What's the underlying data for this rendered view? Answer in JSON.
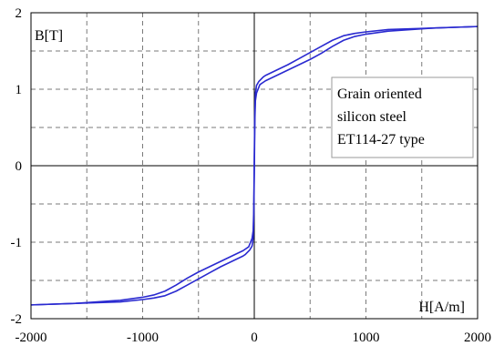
{
  "chart_data": {
    "type": "line",
    "title": "",
    "xlabel": "H[A/m]",
    "ylabel": "B[T]",
    "xlim": [
      -2000,
      2000
    ],
    "ylim": [
      -2,
      2
    ],
    "x_ticks": [
      -2000,
      -1000,
      0,
      1000,
      2000
    ],
    "y_ticks": [
      -2,
      -1,
      0,
      1,
      2
    ],
    "x_tick_labels": [
      "-2000",
      "-1000",
      "0",
      "1000",
      "2000"
    ],
    "y_tick_labels": [
      "-2",
      "-1",
      "0",
      "1",
      "2"
    ],
    "grid": true,
    "grid_step_x": 500,
    "grid_step_y": 0.5,
    "annotation": {
      "lines": [
        "Grain oriented",
        "silicon steel",
        "ET114-27 type"
      ],
      "placement": "upper-right"
    },
    "series": [
      {
        "color": "#2a2ad0",
        "x": [
          -2000,
          -1600,
          -1200,
          -1000,
          -900,
          -800,
          -700,
          -600,
          -500,
          -400,
          -300,
          -200,
          -100,
          -50,
          -20,
          -10,
          -5,
          0,
          5,
          10,
          20,
          40,
          60,
          80,
          100,
          200,
          300,
          400,
          500,
          600,
          700,
          800,
          900,
          1000,
          1200,
          1600,
          2000
        ],
        "y": [
          -1.82,
          -1.8,
          -1.76,
          -1.72,
          -1.69,
          -1.64,
          -1.56,
          -1.47,
          -1.39,
          -1.32,
          -1.25,
          -1.18,
          -1.11,
          -1.06,
          -0.95,
          -0.85,
          -0.6,
          0.1,
          0.7,
          0.95,
          1.05,
          1.1,
          1.13,
          1.16,
          1.18,
          1.25,
          1.32,
          1.4,
          1.48,
          1.56,
          1.64,
          1.7,
          1.73,
          1.75,
          1.78,
          1.8,
          1.82
        ]
      },
      {
        "color": "#2a2ad0",
        "x": [
          -2000,
          -1600,
          -1200,
          -1000,
          -900,
          -800,
          -700,
          -600,
          -500,
          -400,
          -300,
          -200,
          -100,
          -80,
          -60,
          -40,
          -20,
          -10,
          -5,
          0,
          5,
          10,
          20,
          50,
          100,
          200,
          300,
          400,
          500,
          600,
          700,
          800,
          900,
          1000,
          1200,
          1600,
          2000
        ],
        "y": [
          -1.82,
          -1.8,
          -1.78,
          -1.75,
          -1.73,
          -1.7,
          -1.64,
          -1.56,
          -1.48,
          -1.4,
          -1.32,
          -1.25,
          -1.18,
          -1.16,
          -1.13,
          -1.1,
          -1.05,
          -0.95,
          -0.7,
          -0.1,
          0.6,
          0.85,
          0.95,
          1.06,
          1.11,
          1.18,
          1.25,
          1.32,
          1.39,
          1.47,
          1.56,
          1.64,
          1.69,
          1.72,
          1.76,
          1.8,
          1.82
        ]
      }
    ]
  }
}
